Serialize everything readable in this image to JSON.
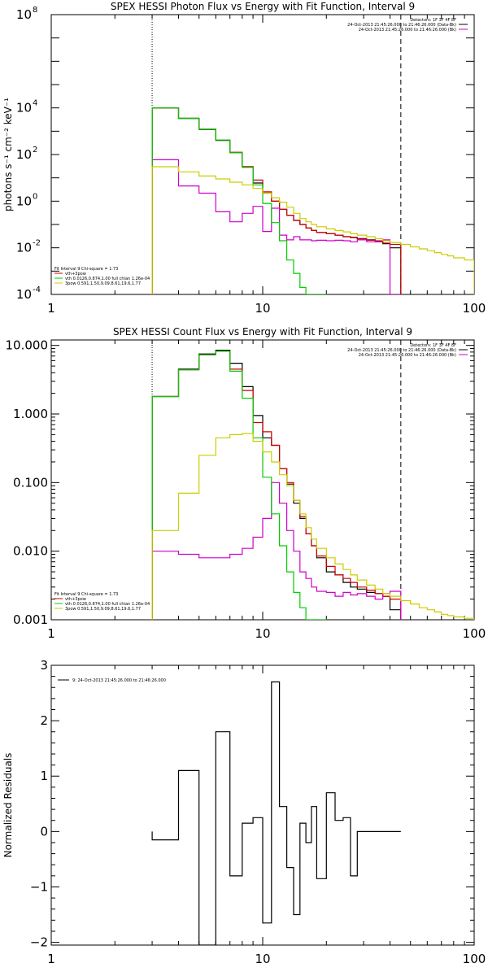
{
  "chart_data": [
    {
      "type": "line",
      "title": "SPEX HESSI Photon Flux vs Energy with Fit Function, Interval 9",
      "ylabel": "photons s⁻¹ cm⁻² keV⁻¹",
      "xlabel": "",
      "xscale": "log",
      "yscale": "log",
      "xlim": [
        1,
        100
      ],
      "ylim": [
        0.0001,
        100000000
      ],
      "xticks": [
        {
          "v": 1,
          "label": "1"
        },
        {
          "v": 10,
          "label": "10"
        },
        {
          "v": 100,
          "label": "100"
        }
      ],
      "yticks": [
        {
          "v": 0.0001,
          "base": "10",
          "exp": "-4"
        },
        {
          "v": 0.01,
          "base": "10",
          "exp": "-2"
        },
        {
          "v": 1,
          "base": "10",
          "exp": "0"
        },
        {
          "v": 100,
          "base": "10",
          "exp": "2"
        },
        {
          "v": 10000,
          "base": "10",
          "exp": "4"
        },
        {
          "v": 100000000,
          "base": "10",
          "exp": "8"
        }
      ],
      "vlines": [
        {
          "x": 3.0,
          "style": "dotted"
        },
        {
          "x": 45,
          "style": "dashed"
        }
      ],
      "legend_topright": [
        "Detectors: 1F 3F 4F 8F",
        "24-Oct-2013 21:45:26.000 to 21:46:26.000 (Data-Bk)",
        "24-Oct-2013 21:45:26.000 to 21:46:26.000 (Bk)"
      ],
      "legend_topright_colors": [
        "#ffffff",
        "#000000",
        "#cc00cc"
      ],
      "legend_bottomleft": [
        "Fit Interval 9   Chi-square = 1.73",
        "vth+3pow",
        "vth 0.0126,0.874,1.00  full chian 1.26e-04",
        "3pow 0.591,1.50,9.09,8.61,19.6,1.77"
      ],
      "legend_bottomleft_colors": [
        "",
        "#cc0000",
        "#00cc00",
        "#cccc00"
      ],
      "energy_edges": [
        3,
        4,
        5,
        6,
        7,
        8,
        9,
        10,
        11,
        12,
        13,
        14,
        15,
        16,
        17,
        18,
        20,
        22,
        24,
        26,
        28,
        31,
        34,
        37,
        40,
        45,
        50,
        55,
        60,
        65,
        70,
        75,
        80,
        90,
        100
      ],
      "series": [
        {
          "name": "Data-Bk",
          "color": "#000000",
          "n": 25,
          "values": [
            10000,
            3500,
            1200,
            400,
            120,
            30,
            6,
            2.2,
            1.0,
            0.45,
            0.25,
            0.15,
            0.1,
            0.07,
            0.055,
            0.045,
            0.04,
            0.035,
            0.03,
            0.028,
            0.025,
            0.022,
            0.019,
            0.015,
            0.01
          ]
        },
        {
          "name": "vth+3pow",
          "color": "#cc0000",
          "n": 25,
          "values": [
            10000,
            3600,
            1250,
            420,
            125,
            30,
            8,
            2.5,
            1.0,
            0.45,
            0.25,
            0.15,
            0.1,
            0.07,
            0.055,
            0.045,
            0.04,
            0.035,
            0.03,
            0.027,
            0.024,
            0.021,
            0.018,
            0.016,
            0.014
          ]
        },
        {
          "name": "Bk",
          "color": "#cc00cc",
          "n": 25,
          "values": [
            60,
            4.5,
            2.2,
            0.35,
            0.13,
            0.3,
            0.6,
            0.05,
            0.5,
            0.035,
            0.022,
            0.03,
            0.022,
            0.022,
            0.02,
            0.021,
            0.02,
            0.021,
            0.02,
            0.018,
            0.022,
            0.018,
            0.02,
            0.022,
            0.0001
          ]
        },
        {
          "name": "vth",
          "color": "#00cc00",
          "n": 16,
          "values": [
            10000,
            3600,
            1250,
            420,
            120,
            28,
            5,
            0.8,
            0.12,
            0.02,
            0.003,
            0.0008,
            0.0002,
            0.0001,
            0.0001,
            0.0001
          ]
        },
        {
          "name": "3pow",
          "color": "#cccc00",
          "n": 34,
          "values": [
            30,
            18,
            12,
            9,
            6.5,
            5,
            3.5,
            2.2,
            1.4,
            0.9,
            0.55,
            0.3,
            0.18,
            0.13,
            0.1,
            0.08,
            0.065,
            0.055,
            0.048,
            0.04,
            0.035,
            0.03,
            0.025,
            0.02,
            0.017,
            0.014,
            0.011,
            0.009,
            0.0075,
            0.0062,
            0.0052,
            0.0045,
            0.0037,
            0.003
          ]
        }
      ]
    },
    {
      "type": "line",
      "title": "SPEX HESSI Count Flux vs Energy with Fit Function, Interval 9",
      "ylabel": "",
      "xlabel": "",
      "xscale": "log",
      "yscale": "log",
      "xlim": [
        1,
        100
      ],
      "ylim": [
        0.001,
        12
      ],
      "xticks": [
        {
          "v": 1,
          "label": "1"
        },
        {
          "v": 10,
          "label": "10"
        },
        {
          "v": 100,
          "label": "100"
        }
      ],
      "yticks": [
        {
          "v": 0.001,
          "label": "0.001"
        },
        {
          "v": 0.01,
          "label": "0.010"
        },
        {
          "v": 0.1,
          "label": "0.100"
        },
        {
          "v": 1,
          "label": "1.000"
        },
        {
          "v": 10,
          "label": "10.000"
        }
      ],
      "vlines": [
        {
          "x": 3.0,
          "style": "dotted"
        },
        {
          "x": 45,
          "style": "dashed"
        }
      ],
      "legend_topright": [
        "Detectors: 1F 3F 4F 8F",
        "24-Oct-2013 21:45:26.000 to 21:46:26.000 (Data-Bk)",
        "24-Oct-2013 21:45:26.000 to 21:46:26.000 (Bk)"
      ],
      "legend_topright_colors": [
        "#ffffff",
        "#000000",
        "#cc00cc"
      ],
      "legend_bottomleft": [
        "Fit Interval 9   Chi-square = 1.73",
        "vth+3pow",
        "vth 0.0126,0.874,1.00  full chian 1.26e-04",
        "3pow 0.591,1.50,9.09,8.61,19.6,1.77"
      ],
      "legend_bottomleft_colors": [
        "",
        "#cc0000",
        "#00cc00",
        "#cccc00"
      ],
      "energy_edges": [
        3,
        4,
        5,
        6,
        7,
        8,
        9,
        10,
        11,
        12,
        13,
        14,
        15,
        16,
        17,
        18,
        20,
        22,
        24,
        26,
        28,
        31,
        34,
        37,
        40,
        45,
        50,
        55,
        60,
        65,
        70,
        75,
        80,
        90,
        100
      ],
      "series": [
        {
          "name": "Data-Bk",
          "color": "#000000",
          "n": 25,
          "values": [
            1.8,
            4.5,
            7.5,
            8.5,
            5.5,
            2.5,
            0.95,
            0.45,
            0.35,
            0.16,
            0.095,
            0.05,
            0.03,
            0.018,
            0.012,
            0.008,
            0.005,
            0.0045,
            0.0035,
            0.003,
            0.0028,
            0.0025,
            0.0024,
            0.0022,
            0.0014
          ]
        },
        {
          "name": "vth+3pow",
          "color": "#cc0000",
          "n": 25,
          "values": [
            1.8,
            4.4,
            7.3,
            8.2,
            4.5,
            2.2,
            0.75,
            0.55,
            0.35,
            0.16,
            0.1,
            0.055,
            0.032,
            0.018,
            0.012,
            0.0085,
            0.006,
            0.0045,
            0.004,
            0.0035,
            0.003,
            0.0027,
            0.0024,
            0.0022,
            0.002
          ]
        },
        {
          "name": "Bk",
          "color": "#cc00cc",
          "n": 25,
          "values": [
            0.01,
            0.009,
            0.008,
            0.008,
            0.009,
            0.011,
            0.016,
            0.03,
            0.1,
            0.05,
            0.02,
            0.01,
            0.005,
            0.004,
            0.003,
            0.0026,
            0.0025,
            0.0022,
            0.0025,
            0.0023,
            0.0024,
            0.0022,
            0.002,
            0.0024,
            0.0026
          ]
        },
        {
          "name": "vth",
          "color": "#00cc00",
          "n": 16,
          "values": [
            1.8,
            4.4,
            7.3,
            8.2,
            4.2,
            1.7,
            0.45,
            0.12,
            0.035,
            0.012,
            0.005,
            0.0025,
            0.0015,
            0.001,
            0.001,
            0.001
          ]
        },
        {
          "name": "3pow",
          "color": "#cccc00",
          "n": 34,
          "values": [
            0.02,
            0.07,
            0.25,
            0.45,
            0.5,
            0.52,
            0.4,
            0.28,
            0.2,
            0.13,
            0.09,
            0.055,
            0.035,
            0.022,
            0.015,
            0.011,
            0.008,
            0.0065,
            0.0054,
            0.0045,
            0.0038,
            0.0032,
            0.0028,
            0.0024,
            0.0022,
            0.0019,
            0.0017,
            0.0015,
            0.0014,
            0.0013,
            0.0012,
            0.00115,
            0.0011,
            0.00105
          ]
        }
      ]
    },
    {
      "type": "line",
      "title": "",
      "ylabel": "Normalized Residuals",
      "xlabel": "",
      "xscale": "log",
      "yscale": "linear",
      "xlim": [
        1,
        100
      ],
      "ylim": [
        -2.05,
        3.0
      ],
      "xticks": [
        {
          "v": 1,
          "label": "1"
        },
        {
          "v": 10,
          "label": "10"
        },
        {
          "v": 100,
          "label": "100"
        }
      ],
      "yticks": [
        {
          "v": -2,
          "label": "−2"
        },
        {
          "v": -1,
          "label": "−1"
        },
        {
          "v": 0,
          "label": "0"
        },
        {
          "v": 1,
          "label": "1"
        },
        {
          "v": 2,
          "label": "2"
        },
        {
          "v": 3,
          "label": "3"
        }
      ],
      "legend_topleft": [
        "9: 24-Oct-2013 21:45:26.000 to 21:46:26.000"
      ],
      "energy_edges": [
        3,
        4,
        5,
        6,
        7,
        8,
        9,
        10,
        11,
        12,
        13,
        14,
        15,
        16,
        17,
        18,
        20,
        22,
        24,
        26,
        28,
        31,
        34,
        37,
        40,
        45
      ],
      "series": [
        {
          "name": "9: 24-Oct-2013 21:45:26.000 to 21:46:26.000",
          "color": "#000000",
          "n": 25,
          "values": [
            -0.15,
            1.1,
            -2.05,
            1.8,
            -0.8,
            0.15,
            0.25,
            -1.65,
            2.7,
            0.45,
            -0.65,
            -1.5,
            0.15,
            -0.2,
            0.45,
            -0.85,
            0.7,
            0.2,
            0.25,
            -0.8,
            0,
            0,
            0,
            0,
            0
          ]
        }
      ]
    }
  ]
}
